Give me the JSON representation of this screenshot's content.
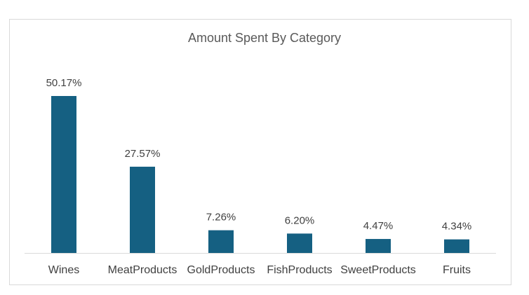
{
  "chart_data": {
    "type": "bar",
    "title": "Amount Spent By Category",
    "categories": [
      "Wines",
      "MeatProducts",
      "GoldProducts",
      "FishProducts",
      "SweetProducts",
      "Fruits"
    ],
    "values": [
      50.17,
      27.57,
      7.26,
      6.2,
      4.47,
      4.34
    ],
    "data_labels": [
      "50.17%",
      "27.57%",
      "7.26%",
      "6.20%",
      "4.47%",
      "4.34%"
    ],
    "unit": "%",
    "xlabel": "",
    "ylabel": "",
    "ylim": [
      0,
      50.17
    ],
    "grid": false,
    "legend": "none",
    "bar_color": "#156082",
    "axis_color": "#d9d9d9"
  }
}
